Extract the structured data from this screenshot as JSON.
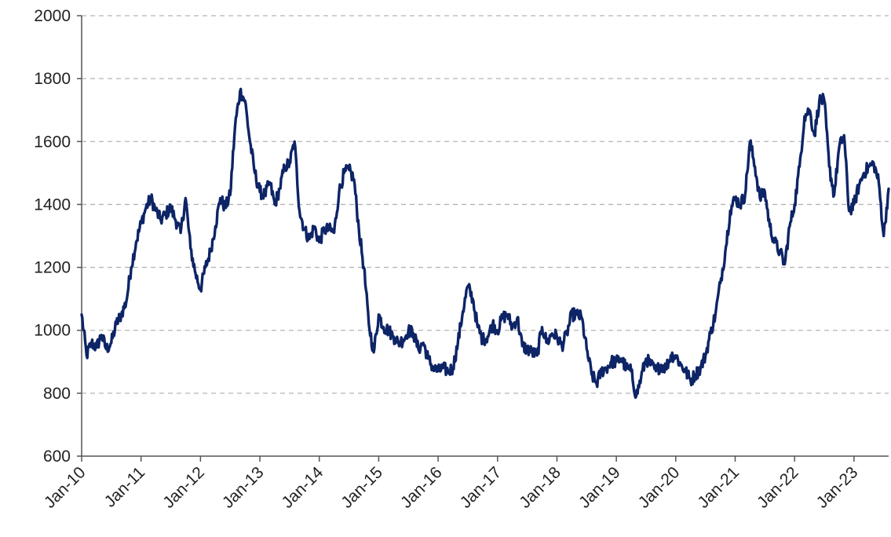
{
  "chart_data": {
    "type": "line",
    "title": "",
    "xlabel": "",
    "ylabel": "",
    "ylim": [
      600,
      2000
    ],
    "yticks": [
      600,
      800,
      1000,
      1200,
      1400,
      1600,
      1800,
      2000
    ],
    "xlim": [
      "2010-01",
      "2023-08"
    ],
    "xticks": [
      "Jan-10",
      "Jan-11",
      "Jan-12",
      "Jan-13",
      "Jan-14",
      "Jan-15",
      "Jan-16",
      "Jan-17",
      "Jan-18",
      "Jan-19",
      "Jan-20",
      "Jan-21",
      "Jan-22",
      "Jan-23"
    ],
    "grid": "horizontal dashed",
    "legend": "none",
    "colors": {
      "series": "#0d2466",
      "grid": "#b5b5b5",
      "axis": "#555555"
    },
    "series": [
      {
        "x": [
          "2010-01",
          "2010-02",
          "2010-03",
          "2010-04",
          "2010-05",
          "2010-06",
          "2010-07",
          "2010-08",
          "2010-09",
          "2010-10",
          "2010-11",
          "2010-12",
          "2011-01",
          "2011-02",
          "2011-03",
          "2011-04",
          "2011-05",
          "2011-06",
          "2011-07",
          "2011-08",
          "2011-09",
          "2011-10",
          "2011-11",
          "2011-12",
          "2012-01",
          "2012-02",
          "2012-03",
          "2012-04",
          "2012-05",
          "2012-06",
          "2012-07",
          "2012-08",
          "2012-09",
          "2012-10",
          "2012-11",
          "2012-12",
          "2013-01",
          "2013-02",
          "2013-03",
          "2013-04",
          "2013-05",
          "2013-06",
          "2013-07",
          "2013-08",
          "2013-09",
          "2013-10",
          "2013-11",
          "2013-12",
          "2014-01",
          "2014-02",
          "2014-03",
          "2014-04",
          "2014-05",
          "2014-06",
          "2014-07",
          "2014-08",
          "2014-09",
          "2014-10",
          "2014-11",
          "2014-12",
          "2015-01",
          "2015-02",
          "2015-03",
          "2015-04",
          "2015-05",
          "2015-06",
          "2015-07",
          "2015-08",
          "2015-09",
          "2015-10",
          "2015-11",
          "2015-12",
          "2016-01",
          "2016-02",
          "2016-03",
          "2016-04",
          "2016-05",
          "2016-06",
          "2016-07",
          "2016-08",
          "2016-09",
          "2016-10",
          "2016-11",
          "2016-12",
          "2017-01",
          "2017-02",
          "2017-03",
          "2017-04",
          "2017-05",
          "2017-06",
          "2017-07",
          "2017-08",
          "2017-09",
          "2017-10",
          "2017-11",
          "2017-12",
          "2018-01",
          "2018-02",
          "2018-03",
          "2018-04",
          "2018-05",
          "2018-06",
          "2018-07",
          "2018-08",
          "2018-09",
          "2018-10",
          "2018-11",
          "2018-12",
          "2019-01",
          "2019-02",
          "2019-03",
          "2019-04",
          "2019-05",
          "2019-06",
          "2019-07",
          "2019-08",
          "2019-09",
          "2019-10",
          "2019-11",
          "2019-12",
          "2020-01",
          "2020-02",
          "2020-03",
          "2020-04",
          "2020-05",
          "2020-06",
          "2020-07",
          "2020-08",
          "2020-09",
          "2020-10",
          "2020-11",
          "2020-12",
          "2021-01",
          "2021-02",
          "2021-03",
          "2021-04",
          "2021-05",
          "2021-06",
          "2021-07",
          "2021-08",
          "2021-09",
          "2021-10",
          "2021-11",
          "2021-12",
          "2022-01",
          "2022-02",
          "2022-03",
          "2022-04",
          "2022-05",
          "2022-06",
          "2022-07",
          "2022-08",
          "2022-09",
          "2022-10",
          "2022-11",
          "2022-12",
          "2023-01",
          "2023-02",
          "2023-03",
          "2023-04",
          "2023-05",
          "2023-06",
          "2023-07",
          "2023-08"
        ],
        "values": [
          1050,
          920,
          960,
          945,
          985,
          940,
          960,
          1020,
          1050,
          1090,
          1200,
          1280,
          1340,
          1390,
          1420,
          1380,
          1350,
          1370,
          1390,
          1350,
          1310,
          1420,
          1260,
          1180,
          1130,
          1200,
          1250,
          1330,
          1420,
          1390,
          1430,
          1650,
          1760,
          1730,
          1600,
          1500,
          1440,
          1430,
          1470,
          1400,
          1450,
          1520,
          1530,
          1600,
          1380,
          1320,
          1290,
          1330,
          1280,
          1320,
          1320,
          1310,
          1440,
          1500,
          1510,
          1480,
          1320,
          1200,
          1020,
          930,
          1050,
          1010,
          1000,
          980,
          960,
          970,
          1000,
          990,
          940,
          960,
          910,
          880,
          870,
          880,
          870,
          880,
          960,
          1060,
          1140,
          1100,
          1010,
          970,
          980,
          1020,
          1000,
          1040,
          1050,
          1010,
          1040,
          950,
          940,
          930,
          920,
          1010,
          960,
          990,
          980,
          950,
          990,
          1050,
          1050,
          1040,
          940,
          860,
          830,
          870,
          880,
          900,
          900,
          910,
          880,
          870,
          790,
          850,
          910,
          890,
          870,
          890,
          880,
          920,
          920,
          890,
          870,
          840,
          860,
          880,
          920,
          990,
          1050,
          1150,
          1250,
          1380,
          1420,
          1400,
          1430,
          1600,
          1520,
          1420,
          1440,
          1330,
          1280,
          1250,
          1210,
          1330,
          1400,
          1520,
          1680,
          1700,
          1620,
          1730,
          1730,
          1520,
          1430,
          1580,
          1620,
          1380,
          1400,
          1460,
          1500,
          1520,
          1530,
          1470,
          1300,
          1450
        ]
      }
    ]
  }
}
